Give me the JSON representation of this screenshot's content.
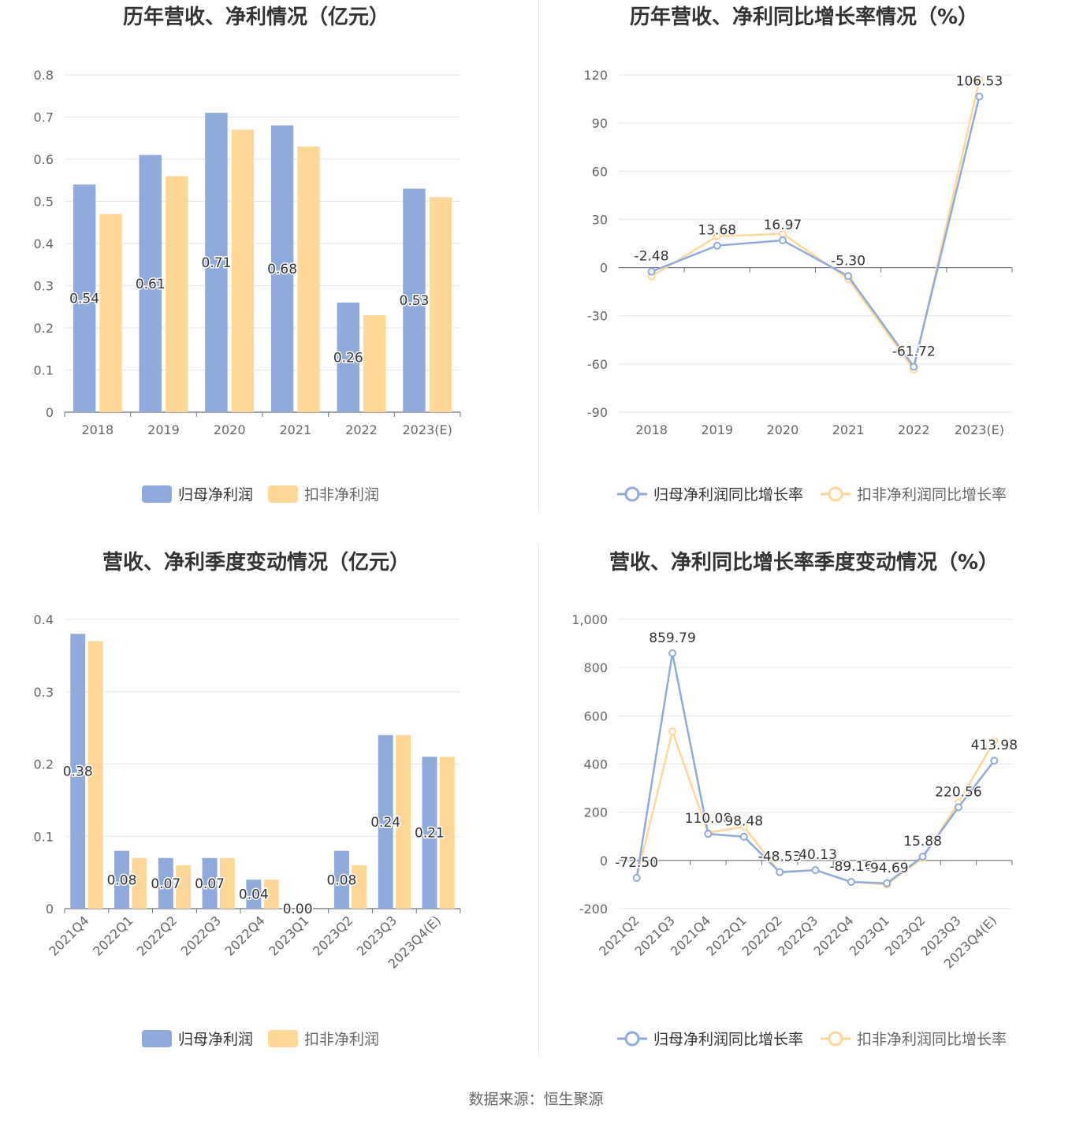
{
  "colors": {
    "primary": "#8eabdb",
    "secondary": "#ffd899",
    "grid": "#e3e6ee",
    "axis": "#6e7079",
    "text": "#666666",
    "title": "#333333"
  },
  "source": "数据来源：恒生聚源",
  "chart_data": [
    {
      "type": "bar",
      "title": "历年营收、净利情况（亿元）",
      "categories": [
        "2018",
        "2019",
        "2020",
        "2021",
        "2022",
        "2023(E)"
      ],
      "ylim": [
        0,
        0.8
      ],
      "yticks": [
        "0",
        "0.1",
        "0.2",
        "0.3",
        "0.4",
        "0.5",
        "0.6",
        "0.7",
        "0.8"
      ],
      "series": [
        {
          "name": "归母净利润",
          "values": [
            0.54,
            0.61,
            0.71,
            0.68,
            0.26,
            0.53
          ],
          "labels": [
            "0.54",
            "0.61",
            "0.71",
            "0.68",
            "0.26",
            "0.53"
          ]
        },
        {
          "name": "扣非净利润",
          "values": [
            0.47,
            0.56,
            0.67,
            0.63,
            0.23,
            0.51
          ]
        }
      ],
      "legend": "bottom-center",
      "grid": true
    },
    {
      "type": "line",
      "title": "历年营收、净利同比增长率情况（%）",
      "categories": [
        "2018",
        "2019",
        "2020",
        "2021",
        "2022",
        "2023(E)"
      ],
      "ylim": [
        -90,
        120
      ],
      "yticks": [
        "-90",
        "-60",
        "-30",
        "0",
        "30",
        "60",
        "90",
        "120"
      ],
      "series": [
        {
          "name": "归母净利润同比增长率",
          "values": [
            -2.48,
            13.68,
            16.97,
            -5.3,
            -61.72,
            106.53
          ],
          "labels": [
            "-2.48",
            "13.68",
            "16.97",
            "-5.30",
            "-61.72",
            "106.53"
          ]
        },
        {
          "name": "扣非净利润同比增长率",
          "values": [
            -5.5,
            19.5,
            21.0,
            -7.0,
            -63.5,
            117.0
          ]
        }
      ],
      "legend": "bottom-center",
      "grid": true
    },
    {
      "type": "bar",
      "title": "营收、净利季度变动情况（亿元）",
      "categories": [
        "2021Q4",
        "2022Q1",
        "2022Q2",
        "2022Q3",
        "2022Q4",
        "2023Q1",
        "2023Q2",
        "2023Q3",
        "2023Q4(E)"
      ],
      "ylim": [
        0,
        0.4
      ],
      "yticks": [
        "0",
        "0.1",
        "0.2",
        "0.3",
        "0.4"
      ],
      "series": [
        {
          "name": "归母净利润",
          "values": [
            0.38,
            0.08,
            0.07,
            0.07,
            0.04,
            0.0,
            0.08,
            0.24,
            0.21
          ],
          "labels": [
            "0.38",
            "0.08",
            "0.07",
            "0.07",
            "0.04",
            "0.00",
            "0.08",
            "0.24",
            "0.21"
          ]
        },
        {
          "name": "扣非净利润",
          "values": [
            0.37,
            0.07,
            0.06,
            0.07,
            0.04,
            0.0,
            0.06,
            0.24,
            0.21
          ]
        }
      ],
      "legend": "bottom-center",
      "grid": true
    },
    {
      "type": "line",
      "title": "营收、净利同比增长率季度变动情况（%）",
      "categories": [
        "2021Q2",
        "2021Q3",
        "2021Q4",
        "2022Q1",
        "2022Q2",
        "2022Q3",
        "2022Q4",
        "2023Q1",
        "2023Q2",
        "2023Q3",
        "2023Q4(E)"
      ],
      "ylim": [
        -200,
        1000
      ],
      "yticks": [
        "-200",
        "0",
        "200",
        "400",
        "600",
        "800",
        "1,000"
      ],
      "series": [
        {
          "name": "归母净利润同比增长率",
          "values": [
            -72.5,
            859.79,
            110.08,
            98.48,
            -48.53,
            -40.13,
            -89.16,
            -94.69,
            15.88,
            220.56,
            413.98
          ],
          "labels": [
            "-72.50",
            "859.79",
            "110.08",
            "98.48",
            "-48.53",
            "-40.13",
            "-89.16",
            "-94.69",
            "15.88",
            "220.56",
            "413.98"
          ]
        },
        {
          "name": "扣非净利润同比增长率",
          "values": [
            -72.5,
            535.0,
            115.0,
            140.0,
            -50.0,
            -40.0,
            -89.0,
            -100.0,
            10.0,
            240.0,
            495.0
          ]
        }
      ],
      "legend": "bottom-center",
      "grid": true
    }
  ]
}
